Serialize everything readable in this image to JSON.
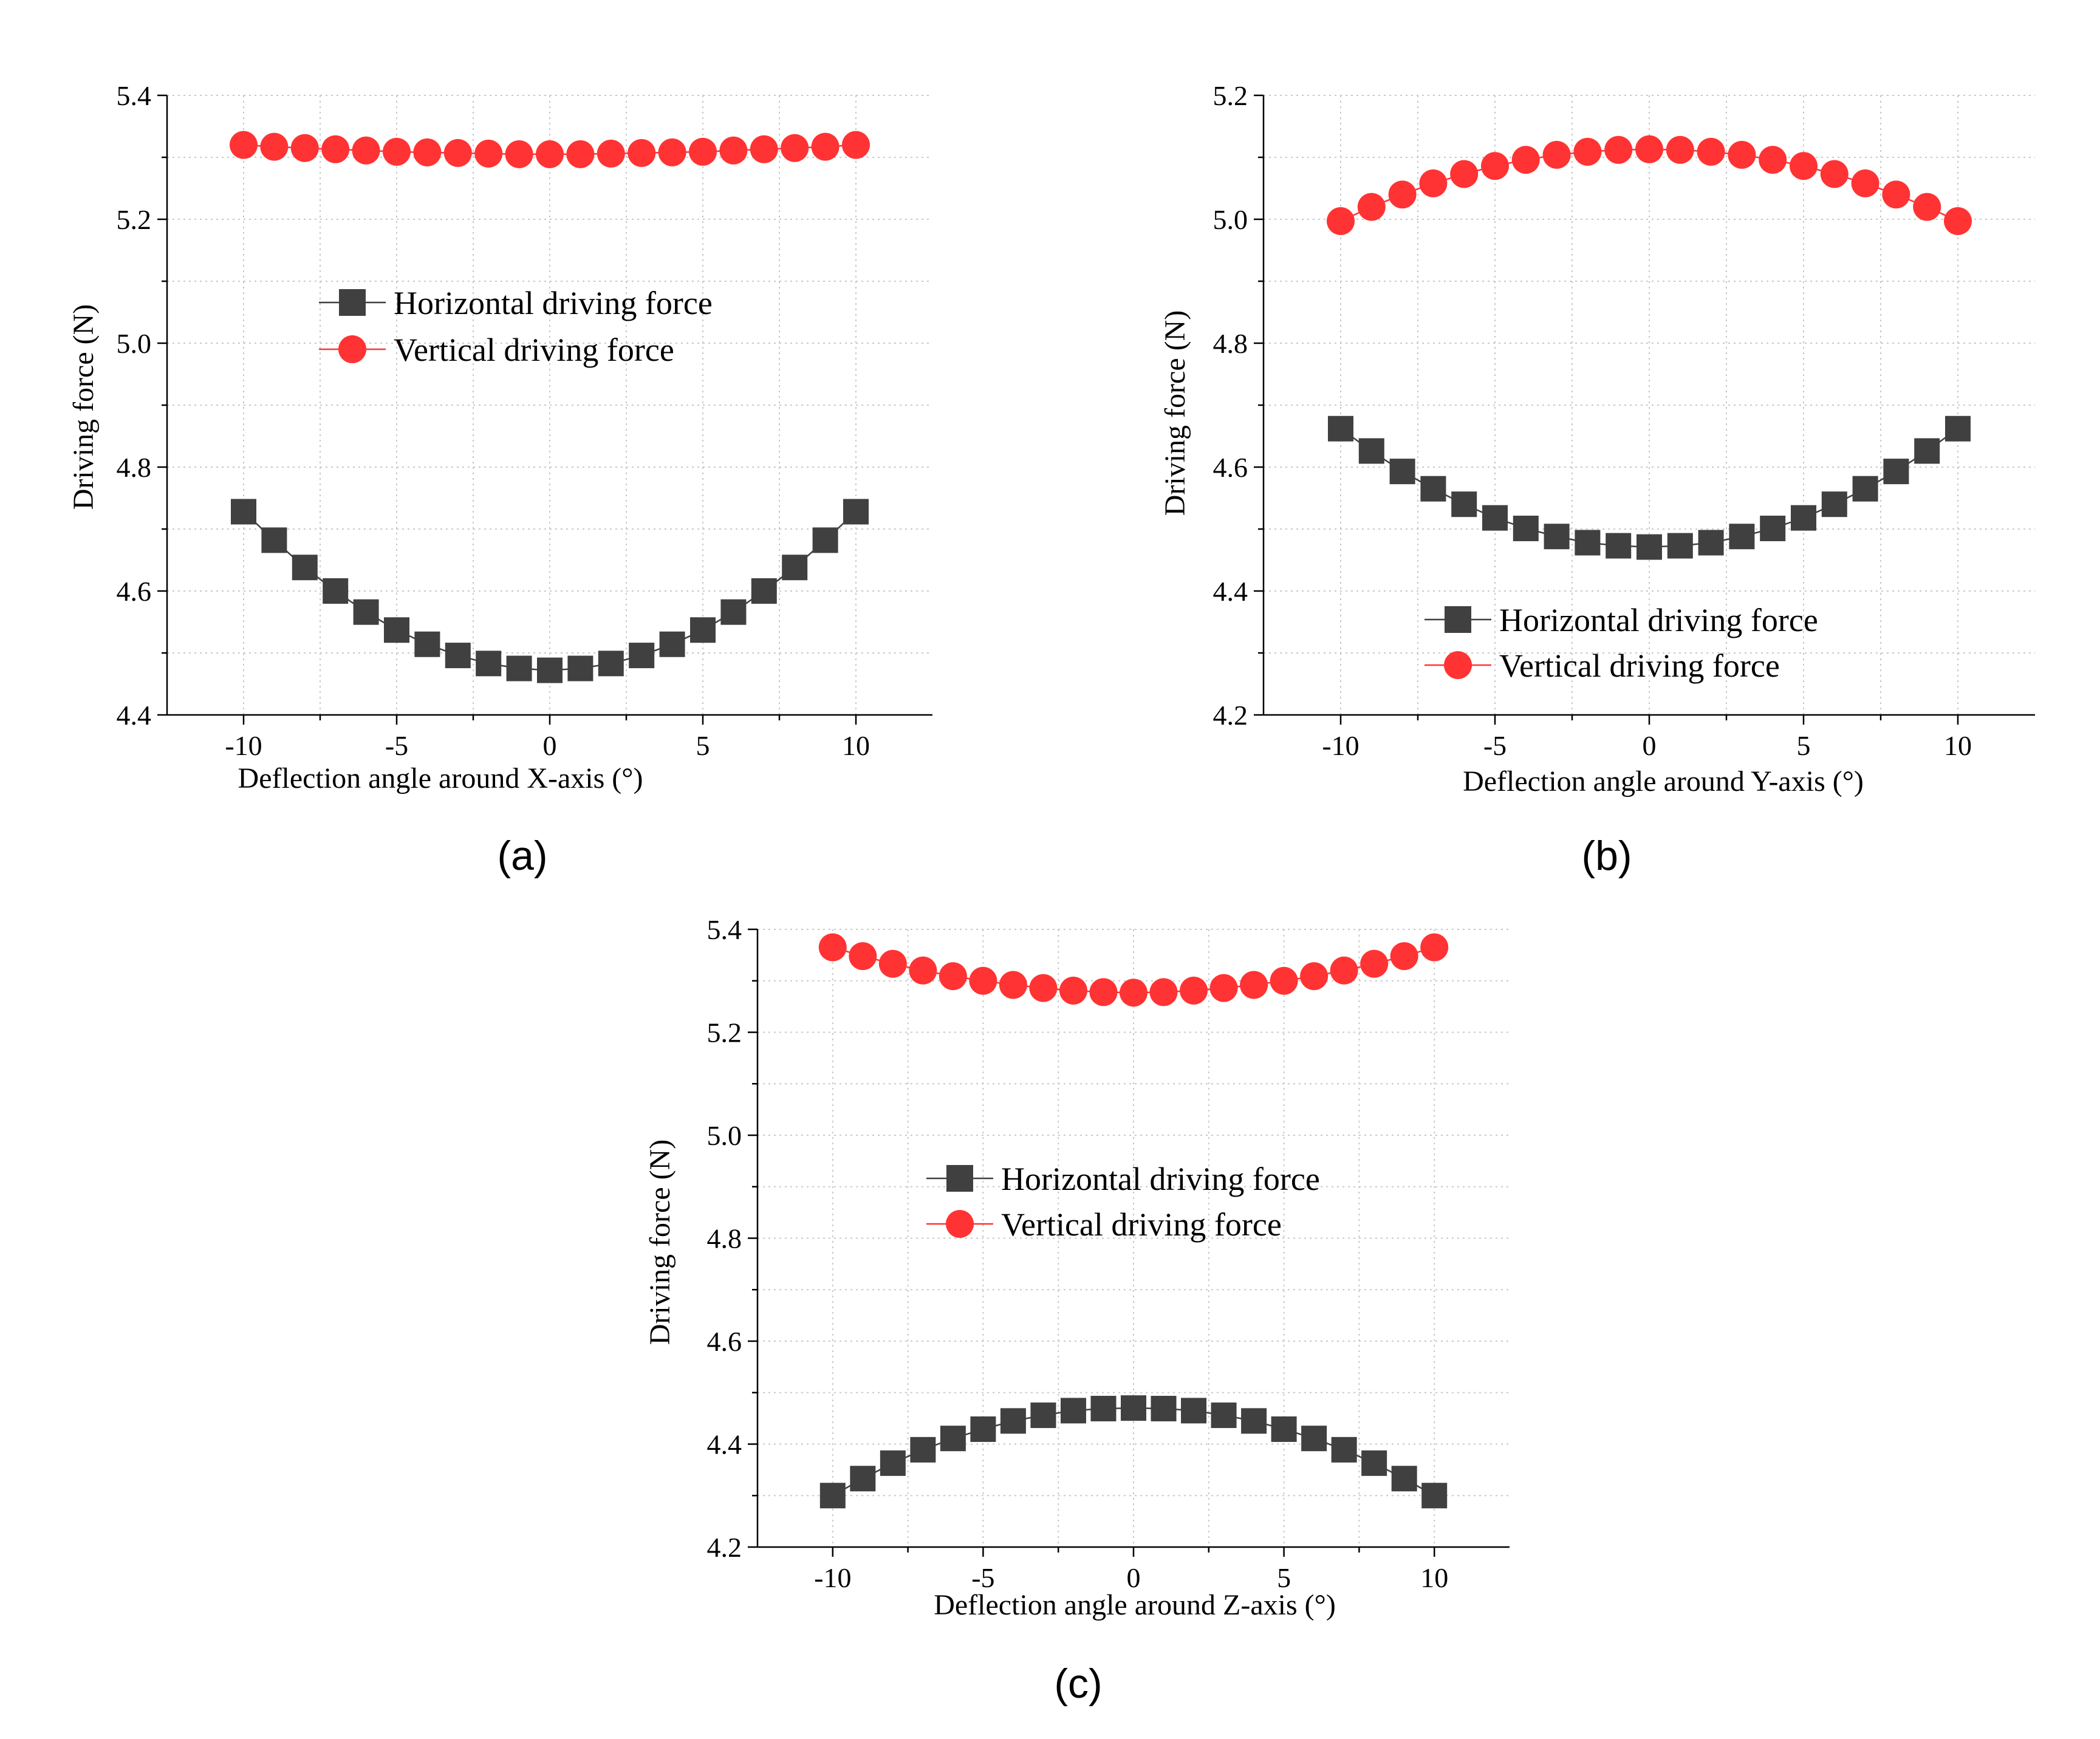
{
  "chart_data": [
    {
      "type": "scatter",
      "caption": "(a)",
      "xlabel": "Deflection angle around X-axis (°)",
      "ylabel": "Driving force (N)",
      "xlim": [
        -12.5,
        12.5
      ],
      "ylim": [
        4.4,
        5.4
      ],
      "xticks": [
        -10,
        -5,
        0,
        5,
        10
      ],
      "xtick_labels": [
        "-10",
        "-5",
        "0",
        "5",
        "10"
      ],
      "yticks": [
        4.4,
        4.6,
        4.8,
        5.0,
        5.2,
        5.4
      ],
      "ytick_labels": [
        "4.4",
        "4.6",
        "4.8",
        "5.0",
        "5.2",
        "5.4"
      ],
      "legend_order": [
        "Horizontal driving force",
        "Vertical driving force"
      ],
      "x": [
        -10,
        -9,
        -8,
        -7,
        -6,
        -5,
        -4,
        -3,
        -2,
        -1,
        0,
        1,
        2,
        3,
        4,
        5,
        6,
        7,
        8,
        9,
        10
      ],
      "series": [
        {
          "name": "Horizontal driving force",
          "marker": "square",
          "color": "#404040",
          "values": [
            4.728,
            4.682,
            4.638,
            4.6,
            4.566,
            4.537,
            4.514,
            4.496,
            4.483,
            4.475,
            4.472,
            4.475,
            4.483,
            4.496,
            4.514,
            4.537,
            4.566,
            4.6,
            4.638,
            4.682,
            4.728
          ]
        },
        {
          "name": "Vertical driving force",
          "marker": "circle",
          "color": "#ff3333",
          "values": [
            5.32,
            5.317,
            5.315,
            5.313,
            5.311,
            5.309,
            5.308,
            5.307,
            5.306,
            5.305,
            5.305,
            5.305,
            5.306,
            5.307,
            5.308,
            5.309,
            5.311,
            5.313,
            5.315,
            5.317,
            5.32
          ]
        }
      ]
    },
    {
      "type": "scatter",
      "caption": "(b)",
      "xlabel": "Deflection angle around Y-axis (°)",
      "ylabel": "Driving force (N)",
      "xlim": [
        -12.5,
        12.5
      ],
      "ylim": [
        4.2,
        5.2
      ],
      "xticks": [
        -10,
        -5,
        0,
        5,
        10
      ],
      "xtick_labels": [
        "-10",
        "-5",
        "0",
        "5",
        "10"
      ],
      "yticks": [
        4.2,
        4.4,
        4.6,
        4.8,
        5.0,
        5.2
      ],
      "ytick_labels": [
        "4.2",
        "4.4",
        "4.6",
        "4.8",
        "5.0",
        "5.2"
      ],
      "legend_order": [
        "Horizontal driving force",
        "Vertical driving force"
      ],
      "x": [
        -10,
        -9,
        -8,
        -7,
        -6,
        -5,
        -4,
        -3,
        -2,
        -1,
        0,
        1,
        2,
        3,
        4,
        5,
        6,
        7,
        8,
        9,
        10
      ],
      "series": [
        {
          "name": "Horizontal driving force",
          "marker": "square",
          "color": "#404040",
          "values": [
            4.662,
            4.626,
            4.593,
            4.565,
            4.54,
            4.518,
            4.501,
            4.488,
            4.478,
            4.473,
            4.471,
            4.473,
            4.478,
            4.488,
            4.501,
            4.518,
            4.54,
            4.565,
            4.593,
            4.626,
            4.662
          ]
        },
        {
          "name": "Vertical driving force",
          "marker": "circle",
          "color": "#ff3333",
          "values": [
            4.997,
            5.02,
            5.04,
            5.058,
            5.073,
            5.086,
            5.096,
            5.104,
            5.109,
            5.112,
            5.113,
            5.112,
            5.109,
            5.104,
            5.096,
            5.086,
            5.073,
            5.058,
            5.04,
            5.02,
            4.997
          ]
        }
      ]
    },
    {
      "type": "scatter",
      "caption": "(c)",
      "xlabel": "Deflection angle around Z-axis (°)",
      "ylabel": "Driving force (N)",
      "xlim": [
        -12.5,
        12.5
      ],
      "ylim": [
        4.2,
        5.4
      ],
      "xticks": [
        -10,
        -5,
        0,
        5,
        10
      ],
      "xtick_labels": [
        "-10",
        "-5",
        "0",
        "5",
        "10"
      ],
      "yticks": [
        4.2,
        4.4,
        4.6,
        4.8,
        5.0,
        5.2,
        5.4
      ],
      "ytick_labels": [
        "4.2",
        "4.4",
        "4.6",
        "4.8",
        "5.0",
        "5.2",
        "5.4"
      ],
      "legend_order": [
        "Horizontal driving force",
        "Vertical driving force"
      ],
      "x": [
        -10,
        -9,
        -8,
        -7,
        -6,
        -5,
        -4,
        -3,
        -2,
        -1,
        0,
        1,
        2,
        3,
        4,
        5,
        6,
        7,
        8,
        9,
        10
      ],
      "series": [
        {
          "name": "Horizontal driving force",
          "marker": "square",
          "color": "#404040",
          "values": [
            4.3,
            4.333,
            4.363,
            4.389,
            4.411,
            4.429,
            4.445,
            4.456,
            4.465,
            4.469,
            4.47,
            4.469,
            4.465,
            4.456,
            4.445,
            4.429,
            4.411,
            4.389,
            4.363,
            4.333,
            4.3
          ]
        },
        {
          "name": "Vertical driving force",
          "marker": "circle",
          "color": "#ff3333",
          "values": [
            5.365,
            5.348,
            5.333,
            5.32,
            5.309,
            5.3,
            5.292,
            5.286,
            5.281,
            5.278,
            5.277,
            5.278,
            5.281,
            5.286,
            5.292,
            5.3,
            5.309,
            5.32,
            5.333,
            5.348,
            5.365
          ]
        }
      ]
    }
  ]
}
